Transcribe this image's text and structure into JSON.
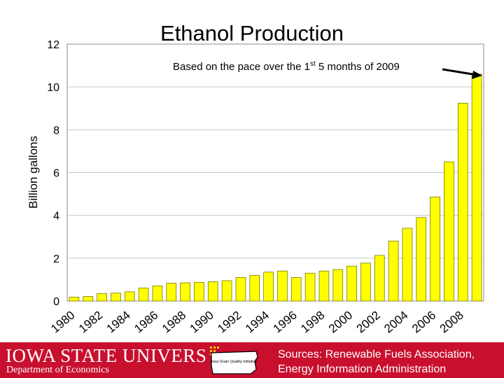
{
  "chart_data": {
    "type": "bar",
    "title": "Ethanol Production",
    "subtitle_main": "Based on the pace over the 1",
    "subtitle_sup": "st",
    "subtitle_rest": " 5 months of 2009",
    "ylabel": "Billion gallons",
    "ylim": [
      0,
      12
    ],
    "yticks": [
      0,
      2,
      4,
      6,
      8,
      10,
      12
    ],
    "xtick_labels": [
      "1980",
      "1982",
      "1984",
      "1986",
      "1988",
      "1990",
      "1992",
      "1994",
      "1996",
      "1998",
      "2000",
      "2002",
      "2004",
      "2006",
      "2008"
    ],
    "categories": [
      "1980",
      "1981",
      "1982",
      "1983",
      "1984",
      "1985",
      "1986",
      "1987",
      "1988",
      "1989",
      "1990",
      "1991",
      "1992",
      "1993",
      "1994",
      "1995",
      "1996",
      "1997",
      "1998",
      "1999",
      "2000",
      "2001",
      "2002",
      "2003",
      "2004",
      "2005",
      "2006",
      "2007",
      "2008",
      "2009"
    ],
    "values": [
      0.18,
      0.21,
      0.35,
      0.37,
      0.43,
      0.61,
      0.71,
      0.83,
      0.85,
      0.87,
      0.9,
      0.95,
      1.1,
      1.2,
      1.35,
      1.4,
      1.1,
      1.3,
      1.4,
      1.47,
      1.63,
      1.77,
      2.13,
      2.8,
      3.4,
      3.9,
      4.86,
      6.5,
      9.24,
      10.6
    ],
    "grid": true,
    "colors": {
      "bar": "#ffff00",
      "bar_edge": "#7a7a00",
      "grid": "#c8c8c8"
    }
  },
  "footer": {
    "university": "IOWA STATE UNIVERSITY",
    "department": "Department of Economics",
    "logo_text": "Iowa Grain Quality Initiative",
    "sources_line1": "Sources: Renewable Fuels Association,",
    "sources_line2": "Energy Information Administration",
    "colors": {
      "background": "#c8102e",
      "text": "#ffffff"
    }
  }
}
